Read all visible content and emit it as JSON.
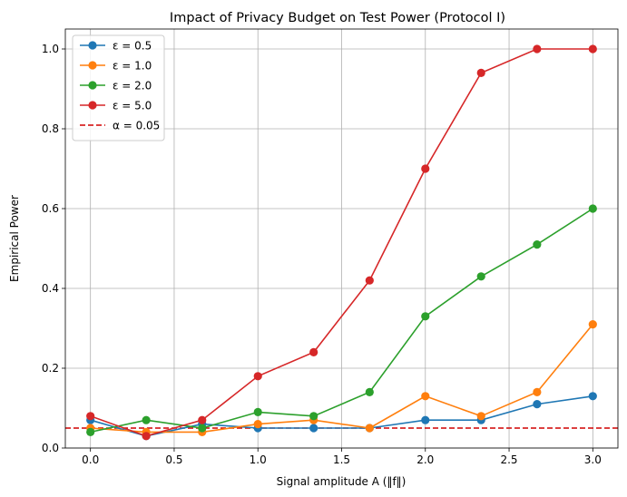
{
  "chart_data": {
    "type": "line",
    "title": "Impact of Privacy Budget on Test Power (Protocol I)",
    "xlabel": "Signal amplitude A (‖f‖)",
    "ylabel": "Empirical Power",
    "xlim": [
      -0.15,
      3.15
    ],
    "ylim": [
      0.0,
      1.05
    ],
    "xticks": [
      0.0,
      0.5,
      1.0,
      1.5,
      2.0,
      2.5,
      3.0
    ],
    "xtick_labels": [
      "0.0",
      "0.5",
      "1.0",
      "1.5",
      "2.0",
      "2.5",
      "3.0"
    ],
    "yticks": [
      0.0,
      0.2,
      0.4,
      0.6,
      0.8,
      1.0
    ],
    "ytick_labels": [
      "0.0",
      "0.2",
      "0.4",
      "0.6",
      "0.8",
      "1.0"
    ],
    "grid": true,
    "legend_position": "top-left",
    "x": [
      0.0,
      0.333,
      0.667,
      1.0,
      1.333,
      1.667,
      2.0,
      2.333,
      2.667,
      3.0
    ],
    "series": [
      {
        "name": "ε = 0.5",
        "color": "#1f77b4",
        "values": [
          0.07,
          0.03,
          0.06,
          0.05,
          0.05,
          0.05,
          0.07,
          0.07,
          0.11,
          0.13
        ]
      },
      {
        "name": "ε = 1.0",
        "color": "#ff7f0e",
        "values": [
          0.05,
          0.04,
          0.04,
          0.06,
          0.07,
          0.05,
          0.13,
          0.08,
          0.14,
          0.31
        ]
      },
      {
        "name": "ε = 2.0",
        "color": "#2ca02c",
        "values": [
          0.04,
          0.07,
          0.05,
          0.09,
          0.08,
          0.14,
          0.33,
          0.43,
          0.51,
          0.6
        ]
      },
      {
        "name": "ε = 5.0",
        "color": "#d62728",
        "values": [
          0.08,
          0.03,
          0.07,
          0.18,
          0.24,
          0.42,
          0.7,
          0.94,
          1.0,
          1.0
        ]
      }
    ],
    "reference_line": {
      "name": "α = 0.05",
      "value": 0.05,
      "color": "#d00000",
      "style": "dashed"
    }
  }
}
